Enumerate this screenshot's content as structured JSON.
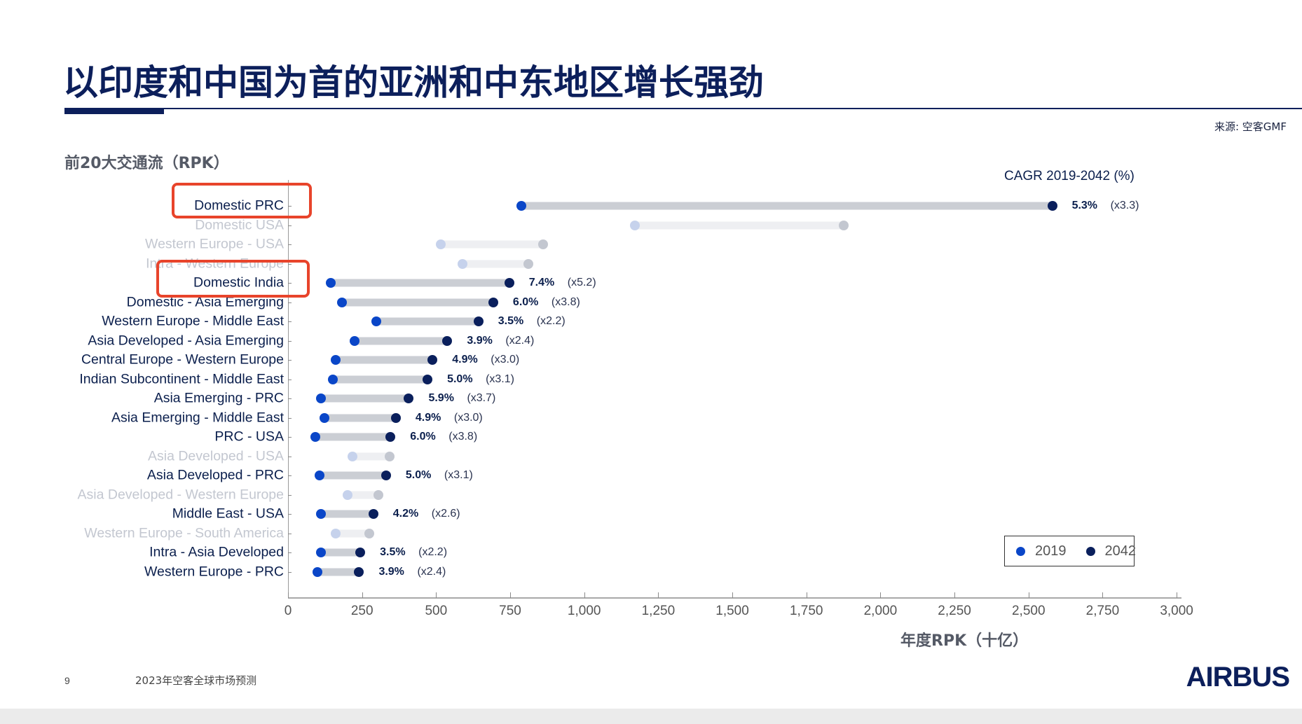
{
  "slide": {
    "title": "以印度和中国为首的亚洲和中东地区增长强劲",
    "source": "来源: 空客GMF",
    "chart_subtitle": "前20大交通流（RPK）",
    "cagr_header": "CAGR 2019-2042 (%)",
    "page_number": "9",
    "footer_text": "2023年空客全球市场预测",
    "logo": "AIRBUS"
  },
  "colors": {
    "title": "#0c1f5b",
    "dot_2019": "#0a46c8",
    "dot_2042": "#0a1f5c",
    "bar": "#cbced4",
    "faded_bar": "#eeeff2",
    "faded_dot_2019": "#c6d2ec",
    "faded_dot_2042": "#c3c7d0",
    "faded_label": "#c3c7d0",
    "highlight": "#e8442b"
  },
  "legend": {
    "items": [
      {
        "label": "2019",
        "color": "#0a46c8"
      },
      {
        "label": "2042",
        "color": "#0a1f5c"
      }
    ]
  },
  "chart_data": {
    "type": "dumbbell",
    "title": "前20大交通流（RPK）",
    "xlabel": "年度RPK（十亿）",
    "ylabel": "",
    "xlim": [
      0,
      3000
    ],
    "xticks": [
      0,
      250,
      500,
      750,
      1000,
      1250,
      1500,
      1750,
      2000,
      2250,
      2500,
      2750,
      3000
    ],
    "xtick_labels": [
      "0",
      "250",
      "500",
      "750",
      "1,000",
      "1,250",
      "1,500",
      "1,750",
      "2,000",
      "2,250",
      "2,500",
      "2,750",
      "3,000"
    ],
    "grid": false,
    "legend_position": "lower right",
    "series_names": [
      "2019",
      "2042"
    ],
    "annotation_header": "CAGR 2019-2042 (%)",
    "highlighted": [
      "Domestic PRC",
      "Domestic India"
    ],
    "rows": [
      {
        "label": "Domestic PRC",
        "v2019": 788,
        "v2042": 2580,
        "cagr": "5.3%",
        "mult": "(x3.3)",
        "faded": false
      },
      {
        "label": "Domestic USA",
        "v2019": 1170,
        "v2042": 1876,
        "cagr": "",
        "mult": "",
        "faded": true
      },
      {
        "label": "Western Europe - USA",
        "v2019": 516,
        "v2042": 860,
        "cagr": "",
        "mult": "",
        "faded": true
      },
      {
        "label": "Intra - Western Europe",
        "v2019": 589,
        "v2042": 812,
        "cagr": "",
        "mult": "",
        "faded": true
      },
      {
        "label": "Domestic India",
        "v2019": 144,
        "v2042": 747,
        "cagr": "7.4%",
        "mult": "(x5.2)",
        "faded": false
      },
      {
        "label": "Domestic - Asia Emerging",
        "v2019": 183,
        "v2042": 693,
        "cagr": "6.0%",
        "mult": "(x3.8)",
        "faded": false
      },
      {
        "label": "Western Europe - Middle East",
        "v2019": 297,
        "v2042": 643,
        "cagr": "3.5%",
        "mult": "(x2.2)",
        "faded": false
      },
      {
        "label": "Asia Developed - Asia Emerging",
        "v2019": 225,
        "v2042": 538,
        "cagr": "3.9%",
        "mult": "(x2.4)",
        "faded": false
      },
      {
        "label": "Central Europe - Western Europe",
        "v2019": 162,
        "v2042": 488,
        "cagr": "4.9%",
        "mult": "(x3.0)",
        "faded": false
      },
      {
        "label": "Indian Subcontinent - Middle East",
        "v2019": 152,
        "v2042": 471,
        "cagr": "5.0%",
        "mult": "(x3.1)",
        "faded": false
      },
      {
        "label": "Asia Emerging - PRC",
        "v2019": 112,
        "v2042": 408,
        "cagr": "5.9%",
        "mult": "(x3.7)",
        "faded": false
      },
      {
        "label": "Asia Emerging - Middle East",
        "v2019": 124,
        "v2042": 364,
        "cagr": "4.9%",
        "mult": "(x3.0)",
        "faded": false
      },
      {
        "label": "PRC - USA",
        "v2019": 92,
        "v2042": 346,
        "cagr": "6.0%",
        "mult": "(x3.8)",
        "faded": false
      },
      {
        "label": "Asia Developed - USA",
        "v2019": 217,
        "v2042": 342,
        "cagr": "",
        "mult": "",
        "faded": true
      },
      {
        "label": "Asia Developed - PRC",
        "v2019": 106,
        "v2042": 331,
        "cagr": "5.0%",
        "mult": "(x3.1)",
        "faded": false
      },
      {
        "label": "Asia Developed - Western Europe",
        "v2019": 201,
        "v2042": 305,
        "cagr": "",
        "mult": "",
        "faded": true
      },
      {
        "label": "Middle East - USA",
        "v2019": 112,
        "v2042": 288,
        "cagr": "4.2%",
        "mult": "(x2.6)",
        "faded": false
      },
      {
        "label": "Western Europe - South America",
        "v2019": 161,
        "v2042": 274,
        "cagr": "",
        "mult": "",
        "faded": true
      },
      {
        "label": "Intra - Asia Developed",
        "v2019": 112,
        "v2042": 244,
        "cagr": "3.5%",
        "mult": "(x2.2)",
        "faded": false
      },
      {
        "label": "Western Europe - PRC",
        "v2019": 100,
        "v2042": 240,
        "cagr": "3.9%",
        "mult": "(x2.4)",
        "faded": false
      }
    ]
  }
}
